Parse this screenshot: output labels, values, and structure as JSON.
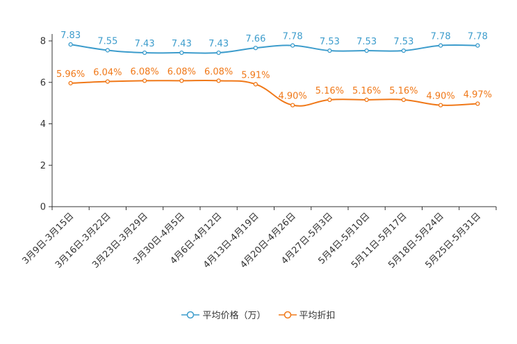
{
  "chart_data": {
    "type": "line",
    "categories": [
      "3月9日-3月15日",
      "3月16日-3月22日",
      "3月23日-3月29日",
      "3月30日-4月5日",
      "4月6日-4月12日",
      "4月13日-4月19日",
      "4月20日-4月26日",
      "4月27日-5月3日",
      "5月4日-5月10日",
      "5月11日-5月17日",
      "5月18日-5月24日",
      "5月25日-5月31日"
    ],
    "series": [
      {
        "name": "平均价格（万）",
        "color": "#3c9ccc",
        "values": [
          7.83,
          7.55,
          7.43,
          7.43,
          7.43,
          7.66,
          7.78,
          7.53,
          7.53,
          7.53,
          7.78,
          7.78
        ],
        "labels": [
          "7.83",
          "7.55",
          "7.43",
          "7.43",
          "7.43",
          "7.66",
          "7.78",
          "7.53",
          "7.53",
          "7.53",
          "7.78",
          "7.78"
        ]
      },
      {
        "name": "平均折扣",
        "color": "#f07818",
        "values": [
          5.96,
          6.04,
          6.08,
          6.08,
          6.08,
          5.91,
          4.9,
          5.16,
          5.16,
          5.16,
          4.9,
          4.97
        ],
        "labels": [
          "5.96%",
          "6.04%",
          "6.08%",
          "6.08%",
          "6.08%",
          "5.91%",
          "4.90%",
          "5.16%",
          "5.16%",
          "5.16%",
          "4.90%",
          "4.97%"
        ]
      }
    ],
    "ylim": [
      0,
      8
    ],
    "yticks": [
      0,
      2,
      4,
      6,
      8
    ],
    "title": "",
    "xlabel": "",
    "ylabel": "",
    "legend": "bottom-center"
  }
}
